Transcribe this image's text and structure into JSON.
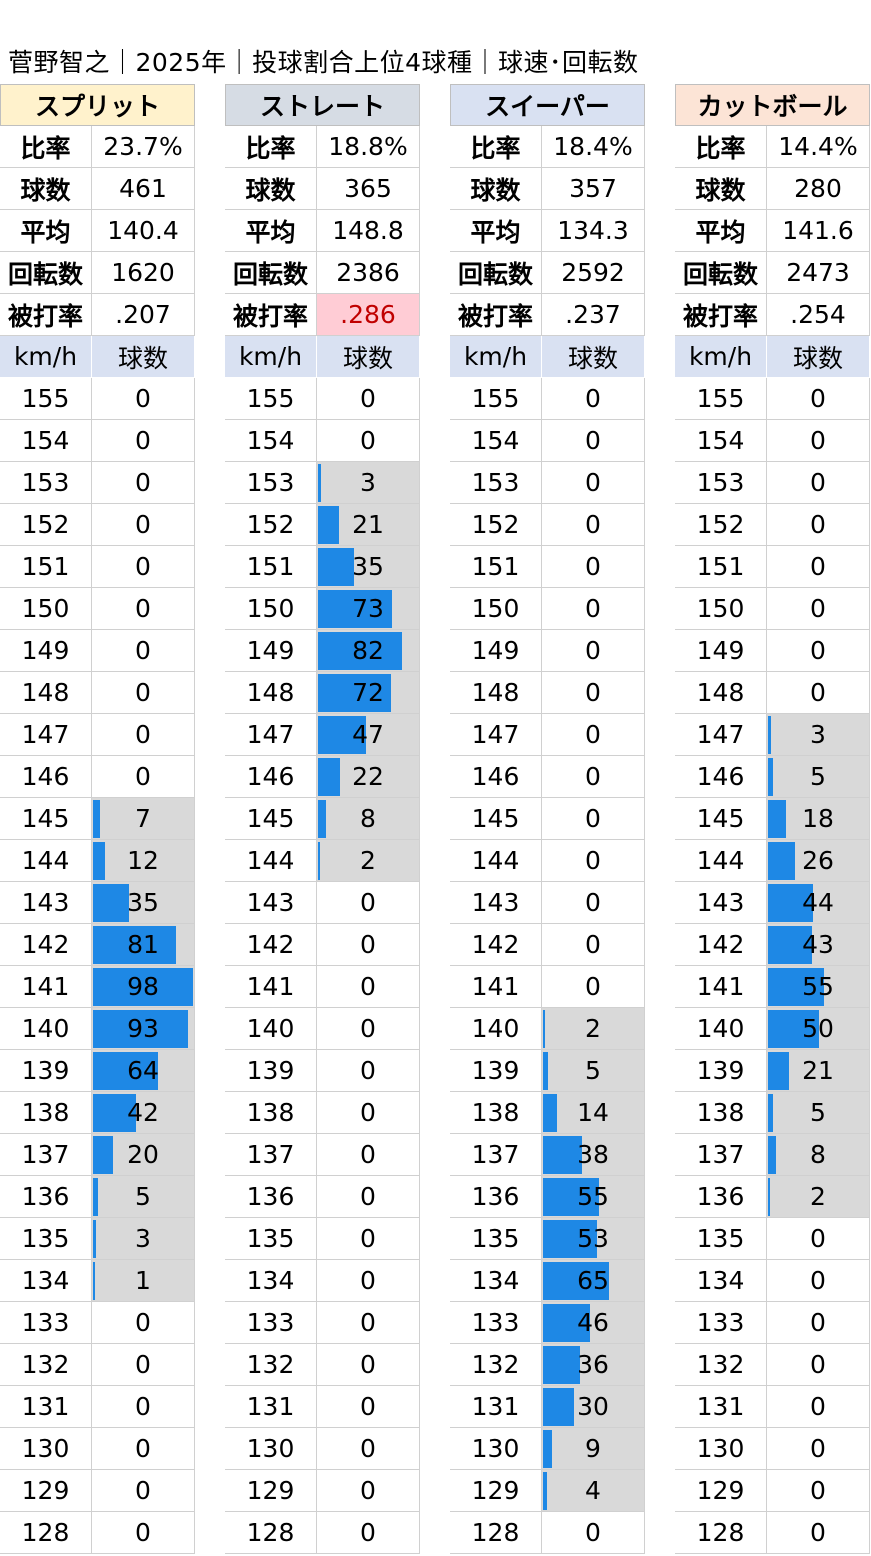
{
  "title": "菅野智之｜2025年｜投球割合上位4球種｜球速･回転数",
  "columns": {
    "speed": "km/h",
    "count": "球数"
  },
  "stat_labels": [
    "比率",
    "球数",
    "平均",
    "回転数",
    "被打率"
  ],
  "colors": {
    "bar": "#1e88e5",
    "bar_bg": "#d9d9d9",
    "highlight_bg": "#ffccd5",
    "highlight_text": "#c00000",
    "col_header_bg": "#d9e1f2"
  },
  "chart_data": {
    "type": "table",
    "speeds": [
      155,
      154,
      153,
      152,
      151,
      150,
      149,
      148,
      147,
      146,
      145,
      144,
      143,
      142,
      141,
      140,
      139,
      138,
      137,
      136,
      135,
      134,
      133,
      132,
      131,
      130,
      129,
      128
    ],
    "series": [
      {
        "name": "スプリット",
        "header_bg": "#fff2cc",
        "stats": [
          "23.7%",
          "461",
          "140.4",
          "1620",
          ".207"
        ],
        "highlight_stat": -1,
        "counts": [
          0,
          0,
          0,
          0,
          0,
          0,
          0,
          0,
          0,
          0,
          7,
          12,
          35,
          81,
          98,
          93,
          64,
          42,
          20,
          5,
          3,
          1,
          0,
          0,
          0,
          0,
          0,
          0
        ]
      },
      {
        "name": "ストレート",
        "header_bg": "#d6dce4",
        "stats": [
          "18.8%",
          "365",
          "148.8",
          "2386",
          ".286"
        ],
        "highlight_stat": 4,
        "counts": [
          0,
          0,
          3,
          21,
          35,
          73,
          82,
          72,
          47,
          22,
          8,
          2,
          0,
          0,
          0,
          0,
          0,
          0,
          0,
          0,
          0,
          0,
          0,
          0,
          0,
          0,
          0,
          0
        ]
      },
      {
        "name": "スイーパー",
        "header_bg": "#d9e1f2",
        "stats": [
          "18.4%",
          "357",
          "134.3",
          "2592",
          ".237"
        ],
        "highlight_stat": -1,
        "counts": [
          0,
          0,
          0,
          0,
          0,
          0,
          0,
          0,
          0,
          0,
          0,
          0,
          0,
          0,
          0,
          2,
          5,
          14,
          38,
          55,
          53,
          65,
          46,
          36,
          30,
          9,
          4,
          0
        ]
      },
      {
        "name": "カットボール",
        "header_bg": "#fce4d6",
        "stats": [
          "14.4%",
          "280",
          "141.6",
          "2473",
          ".254"
        ],
        "highlight_stat": -1,
        "counts": [
          0,
          0,
          0,
          0,
          0,
          0,
          0,
          0,
          3,
          5,
          18,
          26,
          44,
          43,
          55,
          50,
          21,
          5,
          8,
          2,
          0,
          0,
          0,
          0,
          0,
          0,
          0,
          0
        ]
      }
    ],
    "bar_max": 98
  }
}
